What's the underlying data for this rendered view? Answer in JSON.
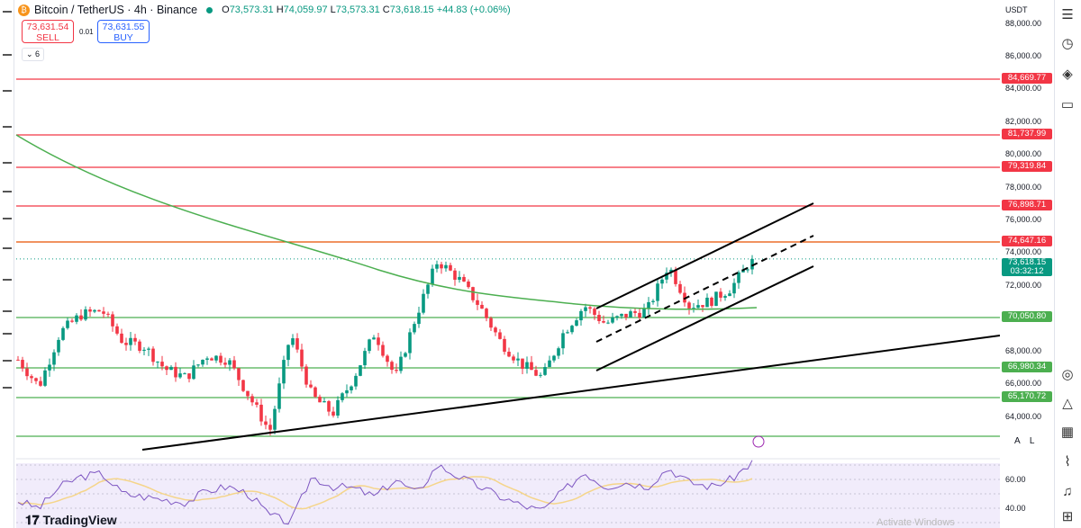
{
  "header": {
    "symbol": "Bitcoin / TetherUS · 4h · Binance",
    "coin_glyph": "₿",
    "open_label": "O",
    "open": "73,573.31",
    "high_label": "H",
    "high": "74,059.97",
    "low_label": "L",
    "low": "73,573.31",
    "close_label": "C",
    "close": "73,618.15",
    "change": "+44.83 (+0.06%)"
  },
  "trade": {
    "sell_price": "73,631.54",
    "sell_label": "SELL",
    "spread": "0.01",
    "buy_price": "73,631.55",
    "buy_label": "BUY"
  },
  "indicators_toggle": "⌄ 6",
  "currency": "USDT",
  "price_scale": {
    "ticks": [
      "88,000.00",
      "86,000.00",
      "84,000.00",
      "82,000.00",
      "80,000.00",
      "78,000.00",
      "76,000.00",
      "74,000.00",
      "72,000.00",
      "68,000.00",
      "66,000.00",
      "64,000.00"
    ],
    "tick_values": [
      88000,
      86000,
      84000,
      82000,
      80000,
      78000,
      76000,
      74000,
      72000,
      68000,
      66000,
      64000
    ],
    "current_price": "73,618.15",
    "countdown": "03:32:12"
  },
  "levels": [
    {
      "price": 84669.77,
      "label": "84,669.77",
      "color": "#f23645"
    },
    {
      "price": 81737.99,
      "label": "81,737.99",
      "color": "#f23645"
    },
    {
      "price": 79319.84,
      "label": "79,319.84",
      "color": "#f23645"
    },
    {
      "price": 76898.71,
      "label": "76,898.71",
      "color": "#f23645"
    },
    {
      "price": 74647.16,
      "label": "74,647.16",
      "color": "#f23645"
    },
    {
      "price": 70050.8,
      "label": "70,050.80",
      "color": "#4caf50"
    },
    {
      "price": 66980.34,
      "label": "66,980.34",
      "color": "#4caf50"
    },
    {
      "price": 65170.72,
      "label": "65,170.72",
      "color": "#4caf50"
    },
    {
      "price": 63700,
      "label": "",
      "color": "#4caf50"
    }
  ],
  "chart_data": {
    "type": "candlestick",
    "price_path": [
      67467,
      65820,
      69115,
      70210,
      70485,
      68565,
      68290,
      66915,
      66370,
      67740,
      67470,
      65270,
      63075,
      69115,
      65270,
      64175,
      66370,
      69115,
      66370,
      70210,
      73510,
      72410,
      70760,
      68565,
      67190,
      66370,
      69115,
      70760,
      69665,
      70210,
      70485,
      73230,
      70760,
      71035,
      71860,
      73618
    ],
    "rsi_ticks": [
      "60.00",
      "40.00"
    ],
    "rsi_path": [
      45,
      40,
      55,
      62,
      64,
      50,
      48,
      46,
      44,
      52,
      55,
      50,
      35,
      30,
      62,
      55,
      54,
      48,
      60,
      50,
      70,
      62,
      55,
      48,
      42,
      38,
      52,
      65,
      55,
      58,
      55,
      68,
      58,
      55,
      60,
      72
    ]
  },
  "rsi_labels": {
    "t60": "60.00",
    "t40": "40.00"
  },
  "colors": {
    "up": "#089981",
    "down": "#f23645",
    "ma": "#4caf50"
  },
  "brand": "TradingView",
  "watermark": "Activate Windows",
  "scale_buttons": "A L"
}
